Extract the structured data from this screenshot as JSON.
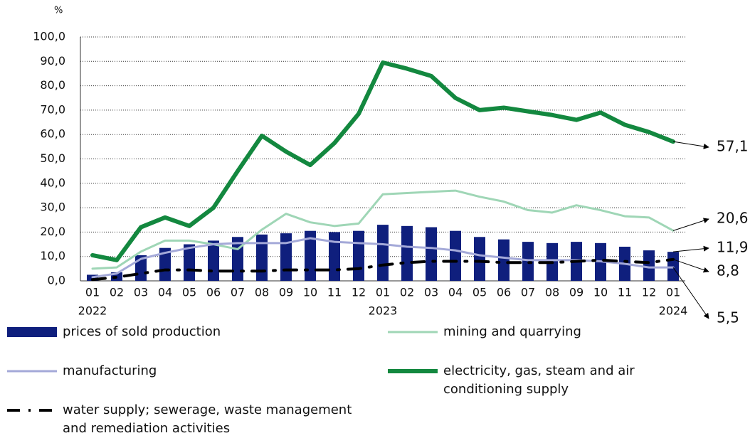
{
  "chart_data": {
    "type": "combo",
    "y_unit": "%",
    "categories": [
      "01",
      "02",
      "03",
      "04",
      "05",
      "06",
      "07",
      "08",
      "09",
      "10",
      "11",
      "12",
      "01",
      "02",
      "03",
      "04",
      "05",
      "06",
      "07",
      "08",
      "09",
      "10",
      "11",
      "12",
      "01"
    ],
    "years": [
      "2022",
      null,
      null,
      null,
      null,
      null,
      null,
      null,
      null,
      null,
      null,
      null,
      "2023",
      null,
      null,
      null,
      null,
      null,
      null,
      null,
      null,
      null,
      null,
      null,
      "2024"
    ],
    "ylim": [
      0,
      100
    ],
    "yticks": [
      {
        "value": 0,
        "label": "0,0"
      },
      {
        "value": 10,
        "label": "10,0"
      },
      {
        "value": 20,
        "label": "20,0"
      },
      {
        "value": 30,
        "label": "30,0"
      },
      {
        "value": 40,
        "label": "40,0"
      },
      {
        "value": 50,
        "label": "50,0"
      },
      {
        "value": 60,
        "label": "60,0"
      },
      {
        "value": 70,
        "label": "70,0"
      },
      {
        "value": 80,
        "label": "80,0"
      },
      {
        "value": 90,
        "label": "90,0"
      },
      {
        "value": 100,
        "label": "100,0"
      }
    ],
    "grid": true,
    "series": [
      {
        "name": "prices of sold production",
        "type": "bar",
        "color": "#0f1f7d",
        "values": [
          2.5,
          3.5,
          10.5,
          13.5,
          15,
          16.5,
          18,
          19,
          19.5,
          20.5,
          20,
          20.5,
          23,
          22.5,
          22,
          20.5,
          18,
          17,
          16,
          15.5,
          16,
          15.5,
          14,
          12.5,
          11.9
        ],
        "end_label": "11,9"
      },
      {
        "name": "mining and quarrying",
        "type": "line",
        "style": "solid",
        "color": "#9fd6b6",
        "values": [
          5,
          5.5,
          12,
          16.5,
          16.5,
          15,
          13,
          21,
          27.5,
          24,
          22.5,
          23.5,
          35.5,
          36,
          36.5,
          37,
          34.5,
          32.5,
          29,
          28,
          31,
          29,
          26.5,
          26,
          20.6
        ],
        "end_label": "20,6"
      },
      {
        "name": "manufacturing",
        "type": "line",
        "style": "solid",
        "color": "#a4a9d8",
        "values": [
          1.5,
          3,
          9,
          11.5,
          13.5,
          15,
          15.5,
          15.5,
          15.5,
          17.5,
          16,
          15.5,
          15,
          14,
          13.5,
          12.5,
          10.5,
          9.5,
          8.5,
          8.5,
          8.5,
          8,
          7,
          5.5,
          5.5
        ],
        "end_label": "5,5"
      },
      {
        "name": "electricity, gas, steam and air conditioning supply",
        "type": "line",
        "style": "thick",
        "color": "#13883f",
        "values": [
          10.5,
          8.5,
          22,
          26,
          22.5,
          30,
          45,
          59.5,
          53,
          47.5,
          56.5,
          68.5,
          89.5,
          87,
          84,
          75,
          70,
          71,
          69.5,
          68,
          66,
          69,
          64,
          61,
          57.1
        ],
        "end_label": "57,1"
      },
      {
        "name": "water supply; sewerage, waste management and remediation activities",
        "type": "line",
        "style": "dashdot",
        "color": "#000000",
        "values": [
          0.5,
          1.5,
          3,
          4.5,
          4.5,
          4,
          4,
          4,
          4.5,
          4.5,
          4.5,
          5,
          6.5,
          7.5,
          8,
          8,
          8,
          7.5,
          7.5,
          7.5,
          8,
          8.5,
          8,
          7.5,
          8.8
        ],
        "end_label": "8,8"
      }
    ]
  }
}
